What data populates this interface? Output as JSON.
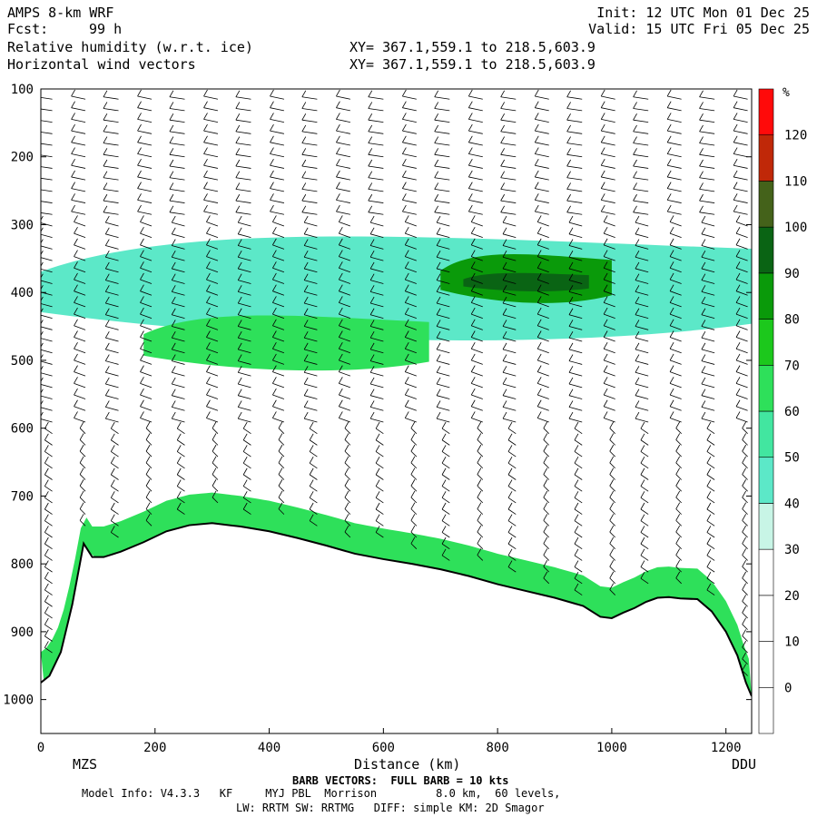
{
  "header": {
    "model": "AMPS 8-km WRF",
    "fcst_label": "Fcst:",
    "fcst_value": "99 h",
    "field1": "Relative humidity (w.r.t. ice)",
    "field2": "Horizontal wind vectors",
    "xy1": "XY= 367.1,559.1 to 218.5,603.9",
    "xy2": "XY= 367.1,559.1 to 218.5,603.9",
    "init": "Init: 12 UTC Mon 01 Dec 25",
    "valid": "Valid: 15 UTC Fri 05 Dec 25"
  },
  "footer": {
    "left_station": "MZS",
    "right_station": "DDU",
    "barb_note": "BARB VECTORS:  FULL BARB = 10 kts",
    "model_info": "Model Info: V4.3.3   KF     MYJ PBL  Morrison         8.0 km,  60 levels,",
    "model_info2": "LW: RRTM SW: RRTMG   DIFF: simple KM: 2D Smagor"
  },
  "chart_data": {
    "type": "heatmap",
    "title": "Relative humidity (w.r.t. ice)",
    "xlabel": "Distance (km)",
    "ylabel": "",
    "xlim": [
      0,
      1245
    ],
    "ylim": [
      1050,
      100
    ],
    "x_ticks": [
      0,
      200,
      400,
      600,
      800,
      1000,
      1200
    ],
    "y_ticks": [
      100,
      200,
      300,
      400,
      500,
      600,
      700,
      800,
      900,
      1000
    ],
    "colorbar": {
      "unit": "%",
      "levels": [
        0,
        10,
        20,
        30,
        40,
        50,
        60,
        70,
        80,
        90,
        100,
        110,
        120
      ],
      "colors": [
        "#ffffff",
        "#ffffff",
        "#ffffff",
        "#ffffff",
        "#c8f5e6",
        "#5ce8c8",
        "#42e6a0",
        "#2ee05a",
        "#1cc81c",
        "#0a9a0a",
        "#0a6414",
        "#44621a",
        "#c02808",
        "#ff0a0a"
      ]
    },
    "terrain_profile": {
      "x": [
        0,
        15,
        35,
        55,
        75,
        90,
        110,
        140,
        180,
        220,
        260,
        300,
        350,
        400,
        450,
        500,
        550,
        600,
        650,
        700,
        750,
        800,
        850,
        900,
        950,
        980,
        1000,
        1020,
        1040,
        1060,
        1080,
        1100,
        1120,
        1150,
        1175,
        1200,
        1220,
        1235,
        1245
      ],
      "p": [
        975,
        965,
        930,
        860,
        770,
        790,
        790,
        782,
        768,
        752,
        743,
        740,
        745,
        752,
        762,
        773,
        785,
        793,
        800,
        808,
        818,
        830,
        840,
        850,
        862,
        878,
        880,
        872,
        865,
        856,
        850,
        849,
        851,
        852,
        870,
        900,
        935,
        975,
        995
      ]
    },
    "rh_regions": [
      {
        "level": 40,
        "x": [
          0,
          1245
        ],
        "p": [
          310,
          480
        ]
      },
      {
        "level": 60,
        "x": [
          180,
          680
        ],
        "p": [
          430,
          520
        ]
      },
      {
        "level": 80,
        "x": [
          700,
          1000
        ],
        "p": [
          340,
          420
        ]
      },
      {
        "level": 90,
        "x": [
          740,
          960
        ],
        "p": [
          370,
          400
        ]
      }
    ]
  }
}
